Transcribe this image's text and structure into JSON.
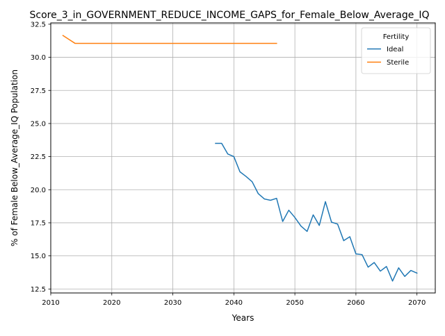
{
  "chart_data": {
    "type": "line",
    "title": "Score_3_in_GOVERNMENT_REDUCE_INCOME_GAPS_for_Female_Below_Average_IQ",
    "xlabel": "Years",
    "ylabel": "% of Female Below_Average_IQ Population",
    "xlim": [
      2010,
      2073
    ],
    "ylim": [
      12.2,
      32.6
    ],
    "xticks": [
      2010,
      2020,
      2030,
      2040,
      2050,
      2060,
      2070
    ],
    "xtick_labels": [
      "2010",
      "2020",
      "2030",
      "2040",
      "2050",
      "2060",
      "2070"
    ],
    "yticks": [
      12.5,
      15.0,
      17.5,
      20.0,
      22.5,
      25.0,
      27.5,
      30.0,
      32.5
    ],
    "ytick_labels": [
      "12.5",
      "15.0",
      "17.5",
      "20.0",
      "22.5",
      "25.0",
      "27.5",
      "30.0",
      "32.5"
    ],
    "grid": true,
    "legend": {
      "title": "Fertility",
      "placement": "top-right"
    },
    "series": [
      {
        "name": "Ideal",
        "color": "#1f77b4",
        "x": [
          2037,
          2038,
          2039,
          2040,
          2041,
          2042,
          2043,
          2044,
          2045,
          2046,
          2047,
          2048,
          2049,
          2050,
          2051,
          2052,
          2053,
          2054,
          2055,
          2056,
          2057,
          2058,
          2059,
          2060,
          2061,
          2062,
          2063,
          2064,
          2065,
          2066,
          2067,
          2068,
          2069,
          2070
        ],
        "values": [
          23.5,
          23.5,
          22.7,
          22.5,
          21.35,
          21.0,
          20.6,
          19.7,
          19.3,
          19.2,
          19.35,
          17.6,
          18.45,
          17.9,
          17.25,
          16.85,
          18.1,
          17.3,
          19.1,
          17.55,
          17.4,
          16.15,
          16.45,
          15.15,
          15.1,
          14.15,
          14.5,
          13.85,
          14.2,
          13.1,
          14.1,
          13.45,
          13.9,
          13.7
        ]
      },
      {
        "name": "Sterile",
        "color": "#ff7f0e",
        "x": [
          2012,
          2013,
          2014,
          2015,
          2016,
          2017,
          2018,
          2019,
          2020,
          2021,
          2022,
          2023,
          2024,
          2025,
          2026,
          2027,
          2028,
          2029,
          2030,
          2031,
          2032,
          2033,
          2034,
          2035,
          2036,
          2037,
          2038,
          2039,
          2040,
          2041,
          2042,
          2043,
          2044,
          2045,
          2046,
          2047
        ],
        "values": [
          31.65,
          31.35,
          31.05,
          31.05,
          31.05,
          31.05,
          31.05,
          31.05,
          31.05,
          31.05,
          31.05,
          31.05,
          31.05,
          31.05,
          31.05,
          31.05,
          31.05,
          31.05,
          31.05,
          31.05,
          31.05,
          31.05,
          31.05,
          31.05,
          31.05,
          31.05,
          31.05,
          31.05,
          31.05,
          31.05,
          31.05,
          31.05,
          31.05,
          31.05,
          31.05,
          31.05
        ]
      }
    ]
  }
}
